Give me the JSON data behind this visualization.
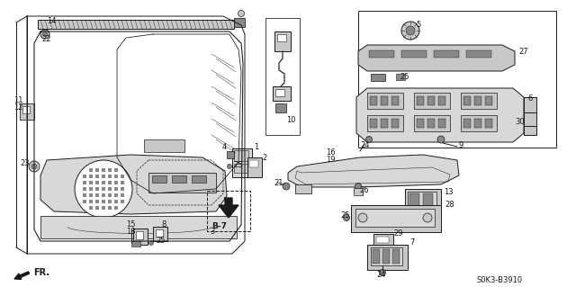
{
  "bg_color": "#ffffff",
  "diagram_code": "S0K3-B3910",
  "label_FR": "FR.",
  "label_B7": "B-7",
  "figsize": [
    6.4,
    3.19
  ],
  "dpi": 100,
  "line_color": "#1a1a1a",
  "lw": 0.7
}
